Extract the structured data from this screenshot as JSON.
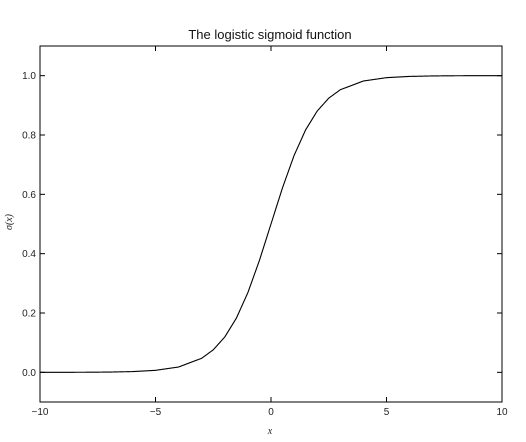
{
  "chart_data": {
    "type": "line",
    "title": "The logistic sigmoid function",
    "xlabel": "x",
    "ylabel": "σ(x)",
    "xlim": [
      -10,
      10
    ],
    "ylim": [
      -0.1,
      1.1
    ],
    "x_ticks": [
      {
        "value": -10,
        "label": "−10"
      },
      {
        "value": -5,
        "label": "−5"
      },
      {
        "value": 0,
        "label": "0"
      },
      {
        "value": 5,
        "label": "5"
      },
      {
        "value": 10,
        "label": "10"
      }
    ],
    "y_ticks": [
      {
        "value": 0.0,
        "label": "0.0"
      },
      {
        "value": 0.2,
        "label": "0.2"
      },
      {
        "value": 0.4,
        "label": "0.4"
      },
      {
        "value": 0.6,
        "label": "0.6"
      },
      {
        "value": 0.8,
        "label": "0.8"
      },
      {
        "value": 1.0,
        "label": "1.0"
      }
    ],
    "grid": false,
    "series": [
      {
        "x": [
          -10,
          -9,
          -8,
          -7,
          -6,
          -5,
          -4,
          -3,
          -2.5,
          -2,
          -1.5,
          -1,
          -0.5,
          0,
          0.5,
          1,
          1.5,
          2,
          2.5,
          3,
          4,
          5,
          6,
          7,
          8,
          9,
          10
        ],
        "y": [
          5e-05,
          0.00012,
          0.00034,
          0.00091,
          0.00247,
          0.0067,
          0.018,
          0.0474,
          0.0759,
          0.1192,
          0.1824,
          0.2689,
          0.3775,
          0.5,
          0.6225,
          0.7311,
          0.8176,
          0.8808,
          0.9241,
          0.9526,
          0.982,
          0.9933,
          0.9975,
          0.9991,
          0.9997,
          0.9999,
          0.99995
        ],
        "color": "#000000"
      }
    ]
  }
}
